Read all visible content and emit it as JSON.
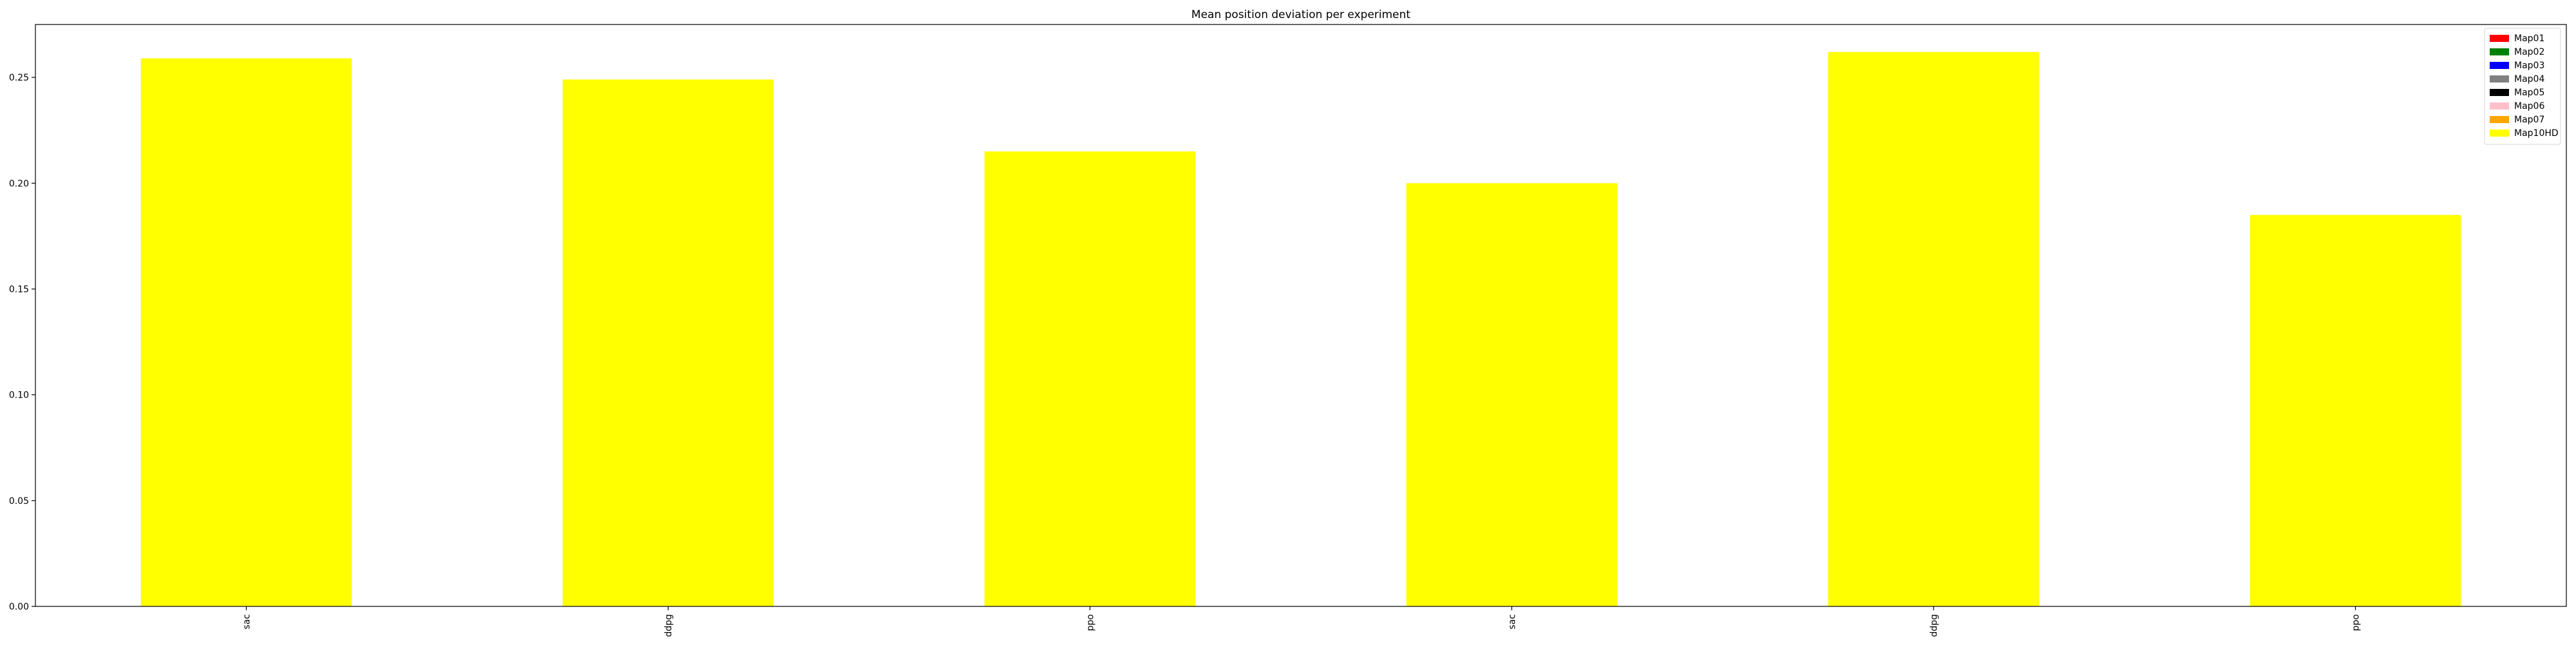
{
  "chart_data": {
    "type": "bar",
    "title": "Mean position deviation per experiment",
    "xlabel": "",
    "ylabel": "",
    "categories": [
      "sac",
      "ddpg",
      "ppo",
      "sac",
      "ddpg",
      "ppo"
    ],
    "values": [
      0.259,
      0.249,
      0.215,
      0.2,
      0.262,
      0.185
    ],
    "bar_color": "#ffff00",
    "ylim": [
      0,
      0.275
    ],
    "yticks": [
      0.0,
      0.05,
      0.1,
      0.15,
      0.2,
      0.25
    ],
    "ytick_labels": [
      "0.00",
      "0.05",
      "0.10",
      "0.15",
      "0.20",
      "0.25"
    ],
    "grid": false,
    "legend": {
      "placement": "top-right",
      "entries": [
        {
          "label": "Map01",
          "color": "#ff0000"
        },
        {
          "label": "Map02",
          "color": "#008000"
        },
        {
          "label": "Map03",
          "color": "#0000ff"
        },
        {
          "label": "Map04",
          "color": "#808080"
        },
        {
          "label": "Map05",
          "color": "#000000"
        },
        {
          "label": "Map06",
          "color": "#ffc0cb"
        },
        {
          "label": "Map07",
          "color": "#ffa500"
        },
        {
          "label": "Map10HD",
          "color": "#ffff00"
        }
      ]
    }
  }
}
